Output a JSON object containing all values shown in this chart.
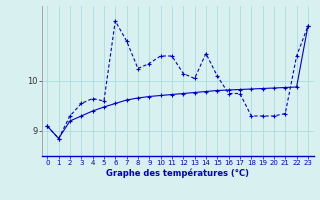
{
  "xlabel": "Graphe des températures (°C)",
  "x_ticks": [
    0,
    1,
    2,
    3,
    4,
    5,
    6,
    7,
    8,
    9,
    10,
    11,
    12,
    13,
    14,
    15,
    16,
    17,
    18,
    19,
    20,
    21,
    22,
    23
  ],
  "y_ticks": [
    9,
    10
  ],
  "ylim": [
    8.5,
    11.5
  ],
  "xlim": [
    -0.5,
    23.5
  ],
  "background_color": "#d8f0f0",
  "line_color": "#0000cc",
  "grid_color": "#aadddd",
  "series1_x": [
    0,
    1,
    2,
    3,
    4,
    5,
    6,
    7,
    8,
    9,
    10,
    11,
    12,
    13,
    14,
    15,
    16,
    17,
    18,
    19,
    20,
    21,
    22,
    23
  ],
  "series1_y": [
    9.1,
    8.85,
    9.3,
    9.55,
    9.65,
    9.6,
    11.2,
    10.8,
    10.25,
    10.35,
    10.5,
    10.5,
    10.15,
    10.05,
    10.55,
    10.1,
    9.75,
    9.75,
    9.3,
    9.3,
    9.3,
    9.35,
    10.5,
    11.1
  ],
  "series2_x": [
    0,
    1,
    2,
    3,
    4,
    5,
    6,
    7,
    8,
    9,
    10,
    11,
    12,
    13,
    14,
    15,
    16,
    17,
    18,
    19,
    20,
    21,
    22,
    23
  ],
  "series2_y": [
    9.1,
    8.85,
    9.2,
    9.3,
    9.4,
    9.48,
    9.55,
    9.62,
    9.66,
    9.69,
    9.71,
    9.73,
    9.75,
    9.77,
    9.79,
    9.81,
    9.82,
    9.83,
    9.84,
    9.85,
    9.86,
    9.87,
    9.88,
    11.1
  ]
}
